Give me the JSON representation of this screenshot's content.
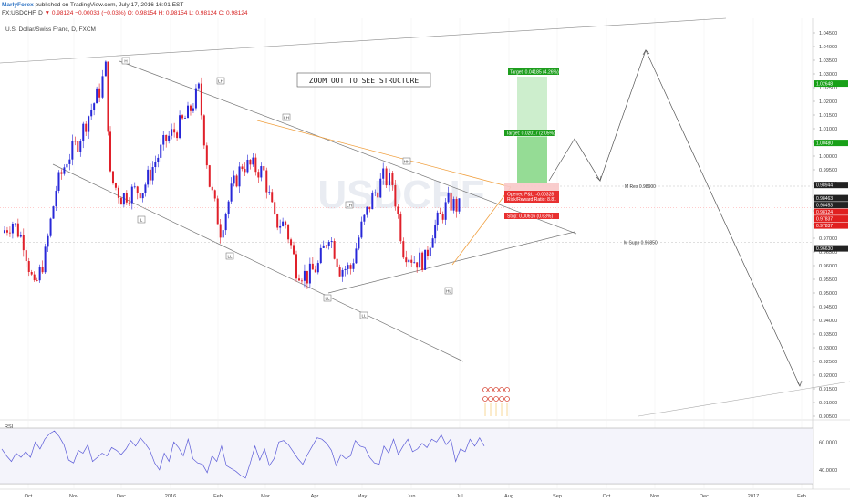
{
  "header": {
    "author": "MarlyForex",
    "published": "published on TradingView.com, July 17, 2016 16:01 EST",
    "symbol_line": "FX:USDCHF, D",
    "last": "0.98124",
    "change": "−0.00033 (−0.03%)",
    "ohlc": "O: 0.98154 H: 0.98154 L: 0.98124 C: 0.98124"
  },
  "chart_data": [
    {
      "type": "candlestick",
      "title": "U.S. Dollar/Swiss Franc, D, FXCM",
      "watermark": "USDCHF",
      "y_axis_side": "right",
      "ylim": [
        0.903,
        1.047
      ],
      "yticks": [
        "1.04500",
        "1.04000",
        "1.03500",
        "1.03000",
        "1.02500",
        "1.02000",
        "1.01500",
        "1.01000",
        "1.00500",
        "1.00000",
        "0.99500",
        "0.99000",
        "0.98500",
        "0.98000",
        "0.97500",
        "0.97000",
        "0.96500",
        "0.96000",
        "0.95500",
        "0.95000",
        "0.94500",
        "0.94000",
        "0.93500",
        "0.93000",
        "0.92500",
        "0.92000",
        "0.91500",
        "0.91000",
        "0.90500"
      ],
      "x_tick_labels": [
        "Oct",
        "Nov",
        "Dec",
        "2016",
        "Feb",
        "Mar",
        "Apr",
        "May",
        "Jun",
        "Jul",
        "Aug",
        "Sep",
        "Oct",
        "Nov",
        "Dec",
        "2017",
        "Feb"
      ],
      "candle_colors": {
        "up": "#2727d8",
        "down": "#e0202a"
      },
      "price_path": [
        {
          "date": "2015-09-24",
          "close": 0.972
        },
        {
          "date": "2015-10-01",
          "close": 0.976
        },
        {
          "date": "2015-10-08",
          "close": 0.969
        },
        {
          "date": "2015-10-15",
          "close": 0.951
        },
        {
          "date": "2015-10-22",
          "close": 0.964
        },
        {
          "date": "2015-10-29",
          "close": 0.988
        },
        {
          "date": "2015-11-05",
          "close": 0.999
        },
        {
          "date": "2015-11-12",
          "close": 1.005
        },
        {
          "date": "2015-11-19",
          "close": 1.015
        },
        {
          "date": "2015-11-26",
          "close": 1.024
        },
        {
          "date": "2015-11-30",
          "close": 1.032
        },
        {
          "date": "2015-12-03",
          "close": 0.992
        },
        {
          "date": "2015-12-10",
          "close": 0.985
        },
        {
          "date": "2015-12-17",
          "close": 0.987
        },
        {
          "date": "2015-12-24",
          "close": 0.988
        },
        {
          "date": "2016-01-01",
          "close": 0.998
        },
        {
          "date": "2016-01-08",
          "close": 1.006
        },
        {
          "date": "2016-01-15",
          "close": 1.01
        },
        {
          "date": "2016-01-22",
          "close": 1.015
        },
        {
          "date": "2016-01-29",
          "close": 1.024
        },
        {
          "date": "2016-02-05",
          "close": 0.99
        },
        {
          "date": "2016-02-12",
          "close": 0.973
        },
        {
          "date": "2016-02-19",
          "close": 0.987
        },
        {
          "date": "2016-02-26",
          "close": 0.997
        },
        {
          "date": "2016-03-04",
          "close": 0.996
        },
        {
          "date": "2016-03-11",
          "close": 0.994
        },
        {
          "date": "2016-03-18",
          "close": 0.976
        },
        {
          "date": "2016-03-25",
          "close": 0.975
        },
        {
          "date": "2016-04-01",
          "close": 0.959
        },
        {
          "date": "2016-04-08",
          "close": 0.956
        },
        {
          "date": "2016-04-15",
          "close": 0.96
        },
        {
          "date": "2016-04-22",
          "close": 0.972
        },
        {
          "date": "2016-04-29",
          "close": 0.959
        },
        {
          "date": "2016-05-06",
          "close": 0.959
        },
        {
          "date": "2016-05-13",
          "close": 0.974
        },
        {
          "date": "2016-05-20",
          "close": 0.985
        },
        {
          "date": "2016-05-27",
          "close": 0.992
        },
        {
          "date": "2016-06-02",
          "close": 0.99
        },
        {
          "date": "2016-06-09",
          "close": 0.966
        },
        {
          "date": "2016-06-16",
          "close": 0.962
        },
        {
          "date": "2016-06-23",
          "close": 0.962
        },
        {
          "date": "2016-06-28",
          "close": 0.973
        },
        {
          "date": "2016-07-01",
          "close": 0.976
        },
        {
          "date": "2016-07-08",
          "close": 0.983
        },
        {
          "date": "2016-07-15",
          "close": 0.9812
        }
      ],
      "price_labels": [
        {
          "text": "1.02648",
          "value": 1.02648,
          "color": "#18a018"
        },
        {
          "text": "1.00480",
          "value": 1.0048,
          "color": "#18a018"
        },
        {
          "text": "0.98944",
          "value": 0.98944,
          "color": "#222222"
        },
        {
          "text": "0.98453",
          "value": 0.98453,
          "color": "#222222"
        },
        {
          "text": "0.98463",
          "value": 0.98463,
          "color": "#222222"
        },
        {
          "text": "0.98124",
          "value": 0.98124,
          "color": "#e02020"
        },
        {
          "text": "0.97837",
          "value": 0.97837,
          "color": "#e02020"
        },
        {
          "text": "0.97837",
          "value": 0.97837,
          "color": "#e02020"
        },
        {
          "text": "0.96630",
          "value": 0.9663,
          "color": "#222222"
        }
      ],
      "annotations": {
        "zoom_note": "ZOOM OUT TO SEE STRUCTURE",
        "swing_labels": [
          "H",
          "LH",
          "LH",
          "L",
          "LL",
          "LH",
          "HH",
          "LL",
          "LL",
          "HL"
        ],
        "target_1": "Target: 0.04185 (4.26%)",
        "target_2": "Target: 0.02017 (2.05%)",
        "opened_pl": "Opened P&L: -0.00328",
        "risk_reward": "Risk/Reward Ratio: 8.81",
        "stop": "Stop: 0.00616 (0.63%)",
        "res_label": "M Res 0.98900",
        "supp_label": "M Supp 0.96850"
      }
    },
    {
      "type": "line",
      "title": "RSI",
      "line_color": "#5a5ad8",
      "ylim": [
        32,
        70
      ],
      "yticks": [
        "60.0000",
        "40.0000"
      ],
      "guides": [
        70,
        30
      ],
      "values": [
        55,
        50,
        46,
        52,
        49,
        53,
        49,
        60,
        55,
        62,
        66,
        68,
        64,
        58,
        47,
        45,
        54,
        52,
        58,
        46,
        49,
        52,
        50,
        56,
        54,
        51,
        55,
        61,
        57,
        63,
        59,
        54,
        45,
        40,
        52,
        46,
        60,
        56,
        50,
        62,
        48,
        45,
        44,
        38,
        50,
        46,
        57,
        43,
        41,
        39,
        36,
        34,
        45,
        57,
        47,
        55,
        43,
        48,
        60,
        61,
        58,
        53,
        48,
        44,
        51,
        57,
        63,
        62,
        59,
        54,
        43,
        51,
        48,
        50,
        61,
        57,
        56,
        49,
        45,
        44,
        57,
        52,
        62,
        51,
        57,
        62,
        53,
        55,
        59,
        56,
        62,
        60,
        65,
        58,
        62,
        46,
        55,
        53,
        62,
        57,
        63,
        57
      ]
    }
  ]
}
